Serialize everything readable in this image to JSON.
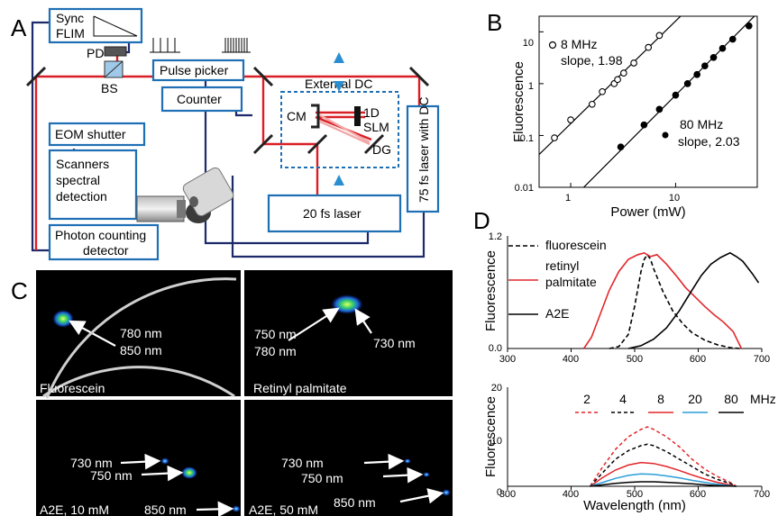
{
  "colors": {
    "laser_path": "#d91f26",
    "box_border": "#1f6fb4",
    "cable": "#1c2a6b",
    "fluorescein": "#000000",
    "retinyl": "#e3262b",
    "a2e": "#000000",
    "mhz_2": "#e3262b",
    "mhz_4": "#000000",
    "mhz_8": "#e3262b",
    "mhz_20": "#2a9ed8",
    "mhz_80": "#000000"
  },
  "panels": {
    "a": "A",
    "b": "B",
    "c": "C",
    "d": "D"
  },
  "setup": {
    "sync_flim": [
      "Sync",
      "FLIM"
    ],
    "pd": "PD",
    "bs": "BS",
    "pulse_picker": "Pulse picker",
    "counter": "Counter",
    "external_dc": "External DC",
    "cm": "CM",
    "slm": [
      "1D",
      "SLM"
    ],
    "dg": "DG",
    "eom_shutter": "EOM shutter",
    "scanners": [
      "Scanners",
      "spectral",
      "detection"
    ],
    "photon_counting": [
      "Photon counting",
      "detector"
    ],
    "laser_20fs": "20 fs laser",
    "laser_75fs": "75 fs laser with DC",
    "mouse_icon": "mouse-icon",
    "objective_icon": "objective-icon"
  },
  "chart_b": {
    "ylabel": "Fluorescence",
    "xlabel": "Power (mW)",
    "yticks": [
      "10",
      "1",
      "0.1",
      "0.01"
    ],
    "xticks": [
      "1",
      "10"
    ],
    "legend_8": [
      "8 MHz",
      "slope, 1.98"
    ],
    "legend_80": [
      "80 MHz",
      "slope, 2.03"
    ]
  },
  "panel_c": {
    "fluorescein": "Fluorescein",
    "fluorescein_ann": [
      "780 nm",
      "850 nm"
    ],
    "retinyl": "Retinyl palmitate",
    "retinyl_ann_left": [
      "750 nm",
      "780 nm"
    ],
    "retinyl_ann_right": "730 nm",
    "a2e_10": "A2E, 10 mM",
    "a2e_50": "A2E, 50 mM",
    "a2e_ann": [
      "730 nm",
      "750 nm",
      "850 nm"
    ]
  },
  "chart_d_top": {
    "ylabel": "Fluorescence",
    "yticks": [
      "1.2",
      "0.0"
    ],
    "xticks": [
      "300",
      "400",
      "500",
      "600",
      "700"
    ],
    "legend": [
      "fluorescein",
      "retinyl",
      "palmitate",
      "A2E"
    ]
  },
  "chart_d_bottom": {
    "ylabel": "Fluorescence",
    "xlabel": "Wavelength (nm)",
    "yticks": [
      "20",
      "10",
      "0"
    ],
    "xticks": [
      "300",
      "400",
      "500",
      "600",
      "700"
    ],
    "legend": [
      "2",
      "4",
      "8",
      "20",
      "80",
      "MHz"
    ]
  },
  "chart_data": [
    {
      "type": "scatter",
      "xlabel": "Power (mW)",
      "ylabel": "Fluorescence",
      "xscale": "log",
      "yscale": "log",
      "xlim": [
        0.5,
        60
      ],
      "ylim": [
        0.01,
        20
      ],
      "series": [
        {
          "name": "8 MHz",
          "marker": "open-circle",
          "slope": 1.98,
          "x": [
            0.7,
            1.0,
            1.6,
            2.0,
            2.6,
            2.8,
            3.2,
            4.0,
            5.5,
            7.0
          ],
          "y": [
            0.09,
            0.2,
            0.4,
            0.7,
            1.0,
            1.2,
            1.6,
            2.5,
            5.0,
            8.5
          ]
        },
        {
          "name": "80 MHz",
          "marker": "filled-circle",
          "slope": 2.03,
          "x": [
            3.0,
            5.0,
            7.0,
            10.0,
            13.0,
            16.0,
            19.0,
            23.0,
            28.0,
            35.0,
            50.0
          ],
          "y": [
            0.06,
            0.16,
            0.32,
            0.6,
            1.0,
            1.5,
            2.2,
            3.2,
            4.8,
            7.2,
            13.0
          ]
        }
      ]
    },
    {
      "type": "line",
      "xlabel": "",
      "ylabel": "Fluorescence",
      "xlim": [
        300,
        700
      ],
      "ylim": [
        0,
        1.2
      ],
      "series": [
        {
          "name": "fluorescein",
          "style": "dashed",
          "x": [
            460,
            475,
            490,
            500,
            510,
            515,
            520,
            525,
            530,
            545,
            560,
            575,
            590,
            610,
            630,
            650,
            665
          ],
          "y": [
            0.0,
            0.02,
            0.15,
            0.45,
            0.82,
            0.95,
            1.0,
            0.95,
            0.85,
            0.6,
            0.4,
            0.27,
            0.17,
            0.09,
            0.04,
            0.01,
            0.0
          ]
        },
        {
          "name": "retinyl palmitate",
          "style": "solid",
          "x": [
            420,
            432,
            445,
            460,
            475,
            490,
            505,
            515,
            525,
            535,
            550,
            565,
            580,
            595,
            610,
            625,
            640,
            655,
            668
          ],
          "y": [
            0.0,
            0.12,
            0.35,
            0.62,
            0.82,
            0.95,
            1.0,
            1.02,
            0.98,
            1.0,
            0.9,
            0.78,
            0.65,
            0.55,
            0.45,
            0.36,
            0.28,
            0.18,
            0.0
          ]
        },
        {
          "name": "A2E",
          "style": "solid",
          "x": [
            490,
            510,
            530,
            550,
            570,
            590,
            605,
            620,
            635,
            650,
            660,
            670,
            685,
            695
          ],
          "y": [
            0.0,
            0.03,
            0.1,
            0.22,
            0.4,
            0.62,
            0.78,
            0.9,
            0.97,
            1.02,
            0.98,
            0.93,
            0.8,
            0.7
          ]
        }
      ]
    },
    {
      "type": "line",
      "xlabel": "Wavelength (nm)",
      "ylabel": "Fluorescence",
      "xlim": [
        300,
        700
      ],
      "ylim": [
        0,
        20
      ],
      "series": [
        {
          "name": "2",
          "style": "dashed",
          "x": [
            430,
            450,
            470,
            490,
            510,
            520,
            530,
            550,
            570,
            590,
            610,
            630,
            650,
            660
          ],
          "y": [
            0.0,
            4.0,
            7.5,
            10.0,
            11.5,
            12.0,
            11.5,
            10.0,
            8.0,
            5.5,
            3.5,
            2.0,
            0.8,
            0.0
          ]
        },
        {
          "name": "4",
          "style": "dashed",
          "x": [
            430,
            450,
            470,
            490,
            510,
            520,
            530,
            550,
            570,
            590,
            610,
            630,
            650,
            660
          ],
          "y": [
            0.0,
            2.8,
            5.5,
            7.2,
            8.2,
            8.5,
            8.2,
            7.0,
            5.5,
            4.0,
            2.5,
            1.4,
            0.6,
            0.0
          ]
        },
        {
          "name": "8",
          "style": "solid",
          "x": [
            430,
            450,
            470,
            490,
            510,
            530,
            550,
            570,
            590,
            610,
            630,
            650,
            660
          ],
          "y": [
            0.0,
            1.8,
            3.3,
            4.3,
            4.8,
            4.6,
            4.0,
            3.2,
            2.3,
            1.5,
            0.8,
            0.3,
            0.0
          ]
        },
        {
          "name": "20",
          "style": "solid",
          "x": [
            430,
            450,
            470,
            490,
            510,
            530,
            550,
            570,
            590,
            610,
            630,
            650,
            660
          ],
          "y": [
            0.0,
            0.8,
            1.6,
            2.2,
            2.5,
            2.4,
            2.1,
            1.7,
            1.2,
            0.8,
            0.4,
            0.15,
            0.0
          ]
        },
        {
          "name": "80",
          "style": "solid",
          "x": [
            430,
            450,
            470,
            490,
            510,
            530,
            550,
            570,
            590,
            610,
            630,
            650,
            660
          ],
          "y": [
            0.0,
            0.3,
            0.6,
            0.8,
            0.9,
            0.9,
            0.8,
            0.65,
            0.5,
            0.3,
            0.15,
            0.05,
            0.0
          ]
        }
      ]
    }
  ]
}
